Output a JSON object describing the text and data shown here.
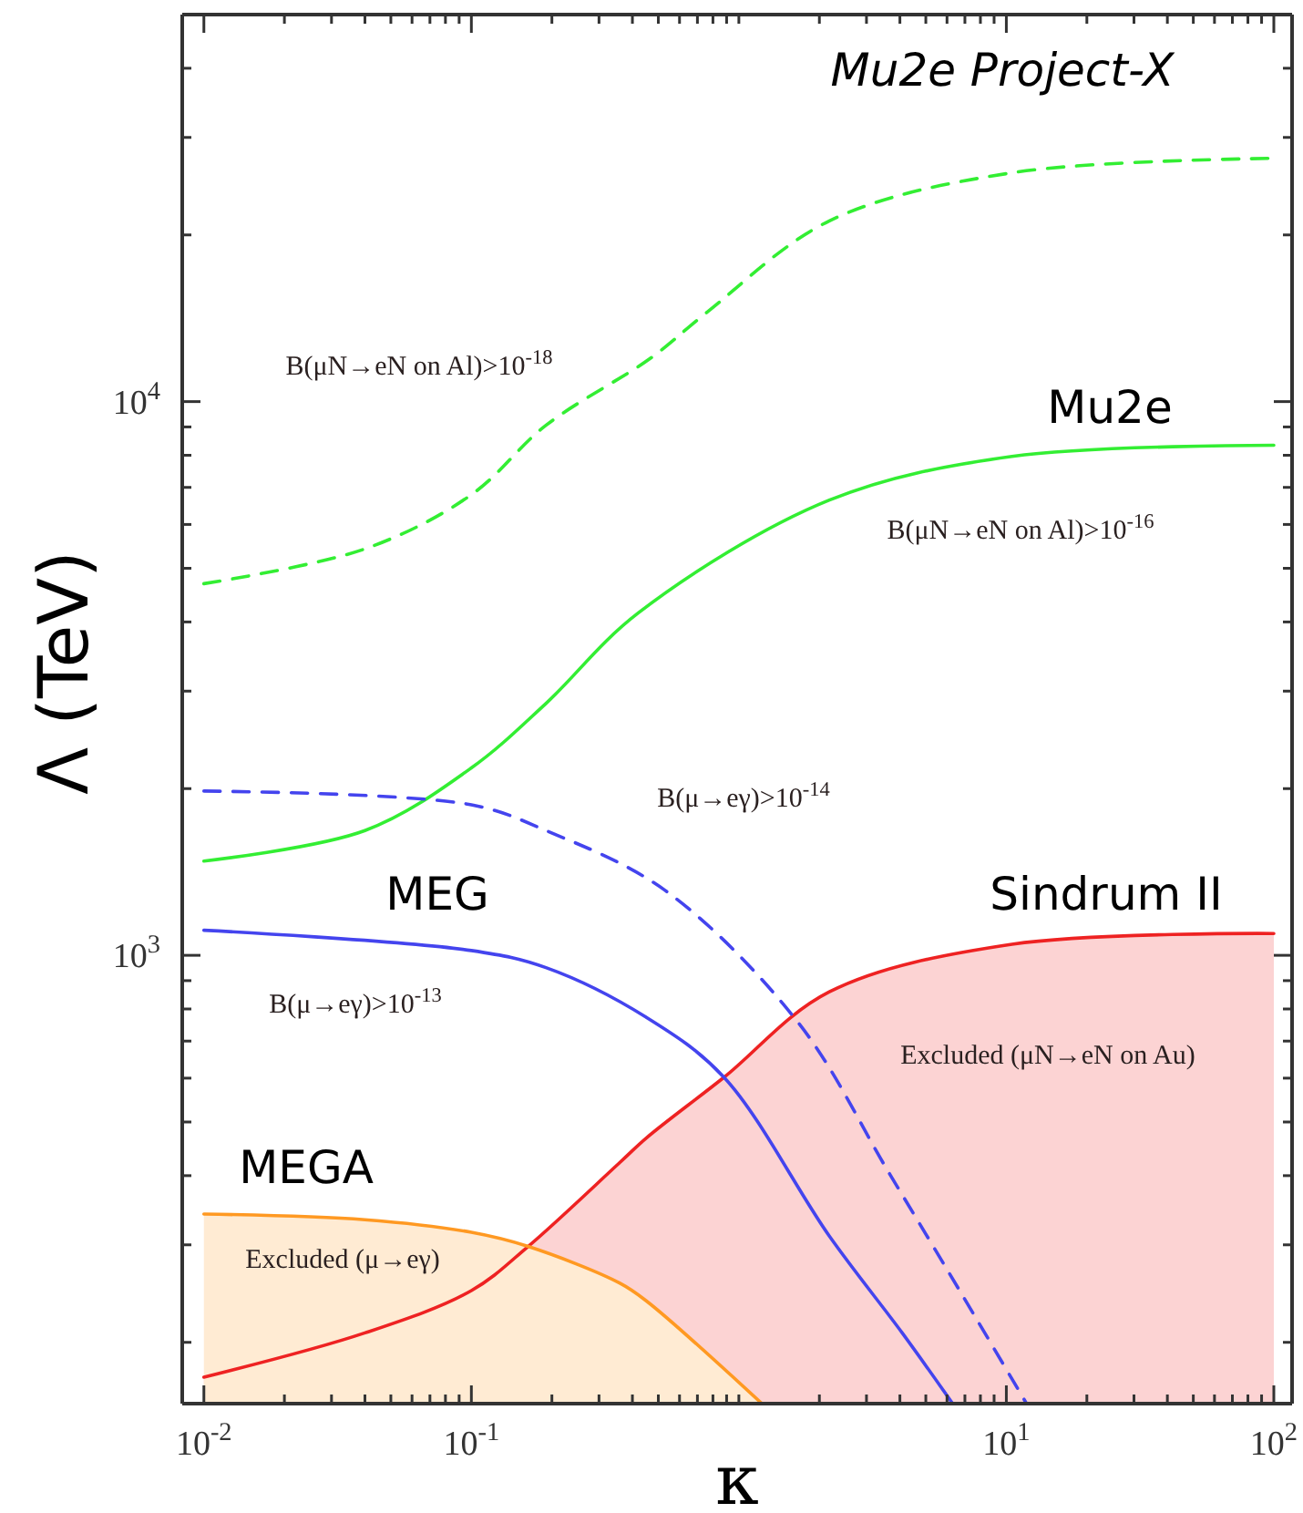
{
  "chart_data": {
    "type": "line",
    "xlabel": "κ",
    "ylabel": "Λ (TeV)",
    "log": "xy",
    "grid": false,
    "xlim": [
      0.0083,
      117
    ],
    "ylim": [
      155,
      50000
    ],
    "xticks": [
      {
        "value": 0.01,
        "label": "10$^{-2}$"
      },
      {
        "value": 0.02,
        "label": null
      },
      {
        "value": 0.03,
        "label": null
      },
      {
        "value": 0.04,
        "label": null
      },
      {
        "value": 0.05,
        "label": null
      },
      {
        "value": 0.06,
        "label": null
      },
      {
        "value": 0.07,
        "label": null
      },
      {
        "value": 0.08,
        "label": null
      },
      {
        "value": 0.09,
        "label": null
      },
      {
        "value": 0.1,
        "label": "10$^{-1}$"
      },
      {
        "value": 0.2,
        "label": null
      },
      {
        "value": 0.3,
        "label": null
      },
      {
        "value": 0.4,
        "label": null
      },
      {
        "value": 0.5,
        "label": null
      },
      {
        "value": 0.6,
        "label": null
      },
      {
        "value": 0.7,
        "label": null
      },
      {
        "value": 0.8,
        "label": null
      },
      {
        "value": 0.9,
        "label": null
      },
      {
        "value": 1,
        "label": null
      },
      {
        "value": 2,
        "label": null
      },
      {
        "value": 3,
        "label": null
      },
      {
        "value": 4,
        "label": null
      },
      {
        "value": 5,
        "label": null
      },
      {
        "value": 6,
        "label": null
      },
      {
        "value": 7,
        "label": null
      },
      {
        "value": 8,
        "label": null
      },
      {
        "value": 9,
        "label": null
      },
      {
        "value": 10,
        "label": "10$^{1}$"
      },
      {
        "value": 20,
        "label": null
      },
      {
        "value": 30,
        "label": null
      },
      {
        "value": 40,
        "label": null
      },
      {
        "value": 50,
        "label": null
      },
      {
        "value": 60,
        "label": null
      },
      {
        "value": 70,
        "label": null
      },
      {
        "value": 80,
        "label": null
      },
      {
        "value": 90,
        "label": null
      },
      {
        "value": 100,
        "label": "10$^{2}$"
      }
    ],
    "yticks": [
      {
        "value": 200,
        "label": null
      },
      {
        "value": 300,
        "label": null
      },
      {
        "value": 400,
        "label": null
      },
      {
        "value": 500,
        "label": null
      },
      {
        "value": 600,
        "label": null
      },
      {
        "value": 700,
        "label": null
      },
      {
        "value": 800,
        "label": null
      },
      {
        "value": 900,
        "label": null
      },
      {
        "value": 1000,
        "label": "10$^{3}$"
      },
      {
        "value": 2000,
        "label": null
      },
      {
        "value": 3000,
        "label": null
      },
      {
        "value": 4000,
        "label": null
      },
      {
        "value": 5000,
        "label": null
      },
      {
        "value": 6000,
        "label": null
      },
      {
        "value": 7000,
        "label": null
      },
      {
        "value": 8000,
        "label": null
      },
      {
        "value": 9000,
        "label": null
      },
      {
        "value": 10000,
        "label": "10$^{4}$"
      },
      {
        "value": 20000,
        "label": null
      },
      {
        "value": 30000,
        "label": null
      },
      {
        "value": 40000,
        "label": null
      }
    ],
    "series": [
      {
        "type": "area",
        "name": "Sindrum II",
        "color": "#ee2222",
        "x": [
          0.01,
          0.04,
          0.1,
          0.163,
          0.358,
          0.454,
          0.88,
          2.18,
          10.5,
          100
        ],
        "values": [
          173,
          208,
          248,
          298,
          422,
          469,
          602,
          859,
          1047,
          1095
        ]
      },
      {
        "type": "area",
        "name": "MEGA",
        "color": "#ff9922",
        "x": [
          0.01,
          0.04,
          0.1,
          0.163,
          0.358,
          0.454,
          1.22
        ],
        "values": [
          341,
          333,
          316,
          298,
          256,
          237,
          155
        ]
      },
      {
        "name": "Mu2e Project-X",
        "color": "#33ee33",
        "line_style": "dashed",
        "x": [
          0.01,
          0.04,
          0.1,
          0.19,
          0.47,
          0.76,
          2.18,
          10.5,
          100
        ],
        "values": [
          4690,
          5420,
          6790,
          9060,
          12000,
          14500,
          21200,
          25900,
          27500
        ]
      },
      {
        "name": "Mu2e",
        "color": "#33ee33",
        "line_style": "solid",
        "x": [
          0.01,
          0.04,
          0.1,
          0.19,
          0.42,
          2.18,
          10.5,
          100
        ],
        "values": [
          1480,
          1680,
          2180,
          2850,
          4150,
          6640,
          7960,
          8340
        ]
      },
      {
        "color": "#4444ee",
        "line_style": "dashed",
        "x": [
          0.01,
          0.1,
          0.19,
          0.53,
          1.67,
          3.66,
          6.86,
          11.9
        ],
        "values": [
          1980,
          1870,
          1680,
          1310,
          755,
          403,
          243,
          155
        ]
      },
      {
        "name": "MEG",
        "color": "#4444ee",
        "line_style": "solid",
        "x": [
          0.01,
          0.1,
          0.19,
          0.45,
          0.88,
          2.18,
          4.08,
          6.3
        ],
        "values": [
          1110,
          1020,
          950,
          773,
          602,
          311,
          208,
          155
        ]
      }
    ],
    "annotations": [
      "B(μN→eN on Al)>10$^{-18}$",
      "B(μN→eN on Al)>10$^{-16}$",
      "B(μ→eγ)>10$^{-14}$",
      "B(μ→eγ)>10$^{-13}$",
      "Excluded (μN→eN on Au)",
      "Excluded (μ→eγ)"
    ]
  }
}
